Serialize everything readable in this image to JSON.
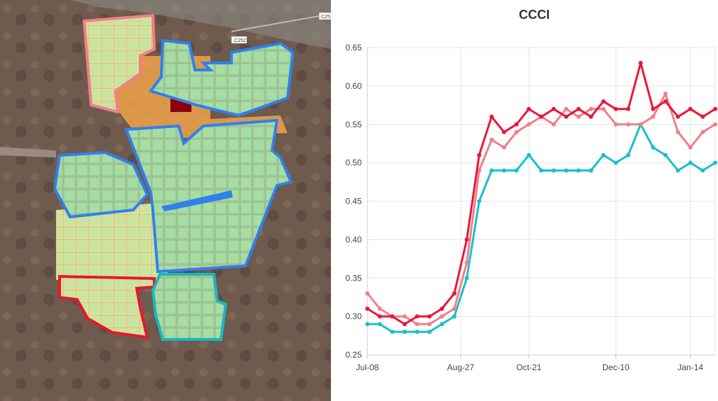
{
  "map": {
    "road_labels": [
      "C252",
      "C25"
    ],
    "field_outline_colors": {
      "pink": "#f07f8a",
      "blue": "#2f80ed",
      "red": "#e8162e",
      "teal": "#17b8c2"
    }
  },
  "chart_data": {
    "type": "line",
    "title": "CCCI",
    "xlabel": "",
    "ylabel": "",
    "x_tick_labels": [
      "Jul-08",
      "Aug-27",
      "Oct-21",
      "Dec-10",
      "Jan-14"
    ],
    "ylim": [
      0.25,
      0.65
    ],
    "y_ticks": [
      "0.25",
      "0.30",
      "0.35",
      "0.40",
      "0.45",
      "0.50",
      "0.55",
      "0.60",
      "0.65"
    ],
    "grid": true,
    "series": [
      {
        "color": "#e8163a",
        "values": [
          0.31,
          0.3,
          0.3,
          0.29,
          0.3,
          0.3,
          0.31,
          0.33,
          0.4,
          0.51,
          0.56,
          0.54,
          0.55,
          0.57,
          0.56,
          0.57,
          0.56,
          0.57,
          0.56,
          0.58,
          0.57,
          0.57,
          0.63,
          0.57,
          0.58,
          0.56,
          0.57,
          0.56,
          0.57
        ]
      },
      {
        "color": "#f07f8a",
        "values": [
          0.33,
          0.31,
          0.3,
          0.3,
          0.29,
          0.29,
          0.3,
          0.31,
          0.37,
          0.49,
          0.53,
          0.52,
          0.54,
          0.55,
          0.56,
          0.55,
          0.57,
          0.56,
          0.57,
          0.57,
          0.55,
          0.55,
          0.55,
          0.56,
          0.59,
          0.54,
          0.52,
          0.54,
          0.55
        ]
      },
      {
        "color": "#17c1c8",
        "values": [
          0.29,
          0.29,
          0.28,
          0.28,
          0.28,
          0.28,
          0.29,
          0.3,
          0.35,
          0.45,
          0.49,
          0.49,
          0.49,
          0.51,
          0.49,
          0.49,
          0.49,
          0.49,
          0.49,
          0.51,
          0.5,
          0.51,
          0.55,
          0.52,
          0.51,
          0.49,
          0.5,
          0.49,
          0.5
        ]
      }
    ]
  }
}
